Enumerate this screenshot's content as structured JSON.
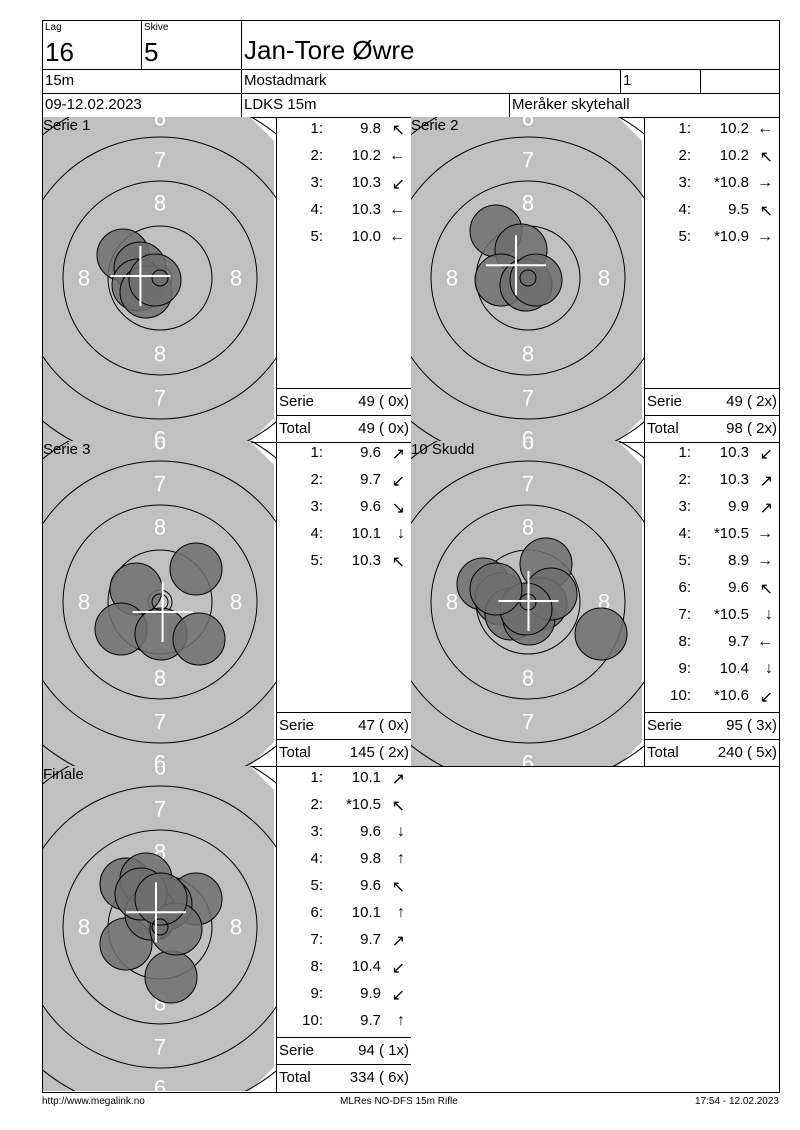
{
  "header": {
    "lag_label": "Lag",
    "lag": "16",
    "skive_label": "Skive",
    "skive": "5",
    "name": "Jan-Tore Øwre",
    "distance": "15m",
    "club": "Mostadmark",
    "klasse": "1",
    "extra": "",
    "date": "09-12.02.2023",
    "event": "LDKS 15m",
    "venue": "Meråker skytehall"
  },
  "ring_labels": {
    "r8": "8",
    "r7": "7",
    "r6": "6"
  },
  "panels": [
    {
      "title": "Serie 1",
      "shots": [
        [
          "1:",
          "9.8",
          "↖"
        ],
        [
          "2:",
          "10.2",
          "←"
        ],
        [
          "3:",
          "10.3",
          "↙"
        ],
        [
          "4:",
          "10.3",
          "←"
        ],
        [
          "5:",
          "10.0",
          "←"
        ]
      ],
      "serie_label": "Serie",
      "serie": "49 ( 0x)",
      "total_label": "Total",
      "total": "49 ( 0x)"
    },
    {
      "title": "Serie 2",
      "shots": [
        [
          "1:",
          "10.2",
          "←"
        ],
        [
          "2:",
          "10.2",
          "↖"
        ],
        [
          "3:",
          "*10.8",
          "→"
        ],
        [
          "4:",
          "9.5",
          "↖"
        ],
        [
          "5:",
          "*10.9",
          "→"
        ]
      ],
      "serie_label": "Serie",
      "serie": "49 ( 2x)",
      "total_label": "Total",
      "total": "98 ( 2x)"
    },
    {
      "title": "Serie 3",
      "shots": [
        [
          "1:",
          "9.6",
          "↗"
        ],
        [
          "2:",
          "9.7",
          "↙"
        ],
        [
          "3:",
          "9.6",
          "↘"
        ],
        [
          "4:",
          "10.1",
          "↓"
        ],
        [
          "5:",
          "10.3",
          "↖"
        ]
      ],
      "serie_label": "Serie",
      "serie": "47 ( 0x)",
      "total_label": "Total",
      "total": "145 ( 2x)"
    },
    {
      "title": "10 Skudd",
      "shots": [
        [
          "1:",
          "10.3",
          "↙"
        ],
        [
          "2:",
          "10.3",
          "↗"
        ],
        [
          "3:",
          "9.9",
          "↗"
        ],
        [
          "4:",
          "*10.5",
          "→"
        ],
        [
          "5:",
          "8.9",
          "→"
        ],
        [
          "6:",
          "9.6",
          "↖"
        ],
        [
          "7:",
          "*10.5",
          "↓"
        ],
        [
          "8:",
          "9.7",
          "←"
        ],
        [
          "9:",
          "10.4",
          "↓"
        ],
        [
          "10:",
          "*10.6",
          "↙"
        ]
      ],
      "serie_label": "Serie",
      "serie": "95 ( 3x)",
      "total_label": "Total",
      "total": "240 ( 5x)"
    },
    {
      "title": "Finale",
      "shots": [
        [
          "1:",
          "10.1",
          "↗"
        ],
        [
          "2:",
          "*10.5",
          "↖"
        ],
        [
          "3:",
          "9.6",
          "↓"
        ],
        [
          "4:",
          "9.8",
          "↑"
        ],
        [
          "5:",
          "9.6",
          "↖"
        ],
        [
          "6:",
          "10.1",
          "↑"
        ],
        [
          "7:",
          "9.7",
          "↗"
        ],
        [
          "8:",
          "10.4",
          "↙"
        ],
        [
          "9:",
          "9.9",
          "↙"
        ],
        [
          "10:",
          "9.7",
          "↑"
        ]
      ],
      "serie_label": "Serie",
      "serie": "94 ( 1x)",
      "total_label": "Total",
      "total": "334 ( 6x)"
    }
  ],
  "footer": {
    "left": "http://www.megalink.no",
    "center": "MLRes NO-DFS 15m Rifle",
    "right": "17:54 - 12.02.2023"
  },
  "colors": {
    "target_bg": "#c0c0c0",
    "shot_fill": "#6e6e6e",
    "cross": "#ffffff"
  }
}
